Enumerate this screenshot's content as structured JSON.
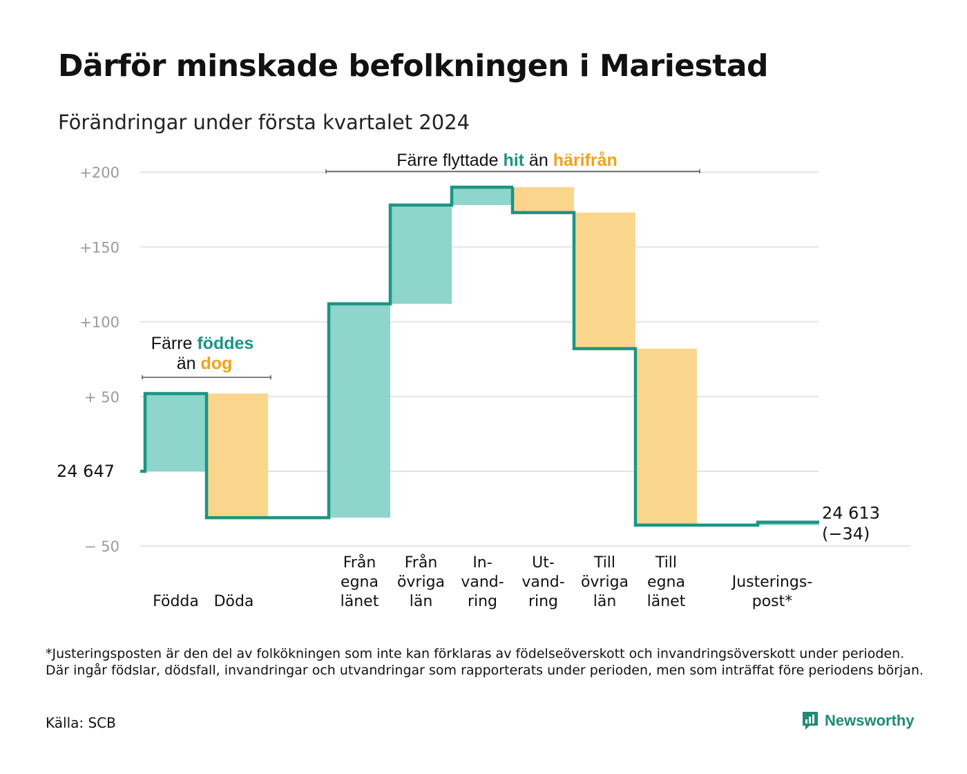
{
  "title": "Därför minskade befolkningen i Mariestad",
  "subtitle": "Förändringar under första kvartalet 2024",
  "colors": {
    "inflow": "#8ed5cb",
    "outflow": "#fad58c",
    "line": "#1a9584",
    "accent_green": "#1a9584",
    "accent_orange": "#f2a21b",
    "grid": "#e3e3e3"
  },
  "chart_data": {
    "type": "waterfall",
    "start_value": "24  647",
    "end_value": "24 613",
    "end_change": "(−34)",
    "ylim": [
      -50,
      200
    ],
    "ytick_values": [
      200,
      150,
      100,
      50,
      -50
    ],
    "ytick_labels": [
      "+200",
      "+150",
      "+100",
      "+  50",
      "−  50"
    ],
    "baseline_label_value": 0,
    "bars": [
      {
        "label_lines": [
          "Födda"
        ],
        "start": 0,
        "end": 52,
        "kind": "inflow"
      },
      {
        "label_lines": [
          "Döda"
        ],
        "start": 52,
        "end": -31,
        "kind": "outflow"
      },
      {
        "label_lines": [
          "Från",
          "egna",
          "länet"
        ],
        "start": -31,
        "end": 112,
        "kind": "inflow"
      },
      {
        "label_lines": [
          "Från",
          "övriga",
          "län"
        ],
        "start": 112,
        "end": 178,
        "kind": "inflow"
      },
      {
        "label_lines": [
          "In-",
          "vand-",
          "ring"
        ],
        "start": 178,
        "end": 190,
        "kind": "inflow"
      },
      {
        "label_lines": [
          "Ut-",
          "vand-",
          "ring"
        ],
        "start": 190,
        "end": 173,
        "kind": "outflow"
      },
      {
        "label_lines": [
          "Till",
          "övriga",
          "län"
        ],
        "start": 173,
        "end": 82,
        "kind": "outflow"
      },
      {
        "label_lines": [
          "Till",
          "egna",
          "länet"
        ],
        "start": 82,
        "end": -36,
        "kind": "outflow"
      },
      {
        "label_lines": [
          "Justerings-",
          "post*"
        ],
        "start": -36,
        "end": -34,
        "kind": "inflow"
      }
    ],
    "annotations": [
      {
        "id": "births",
        "line1": [
          "Färre ",
          "föddes"
        ],
        "line2": [
          "än ",
          "dog"
        ]
      },
      {
        "id": "migration",
        "parts": [
          "Färre flyttade ",
          "hit",
          " än ",
          "härifrån"
        ]
      }
    ]
  },
  "footnote": "*Justeringsposten är den del av folkökningen som inte kan förklaras av födelseöverskott och invandringsöverskott under perioden. Där ingår födslar, dödsfall, invandringar och utvandringar som rapporterats under perioden, men som inträffat före periodens början.",
  "source": "Källa: SCB",
  "brand": {
    "name": "Newsworthy",
    "icon": "newsworthy-logo-icon"
  }
}
